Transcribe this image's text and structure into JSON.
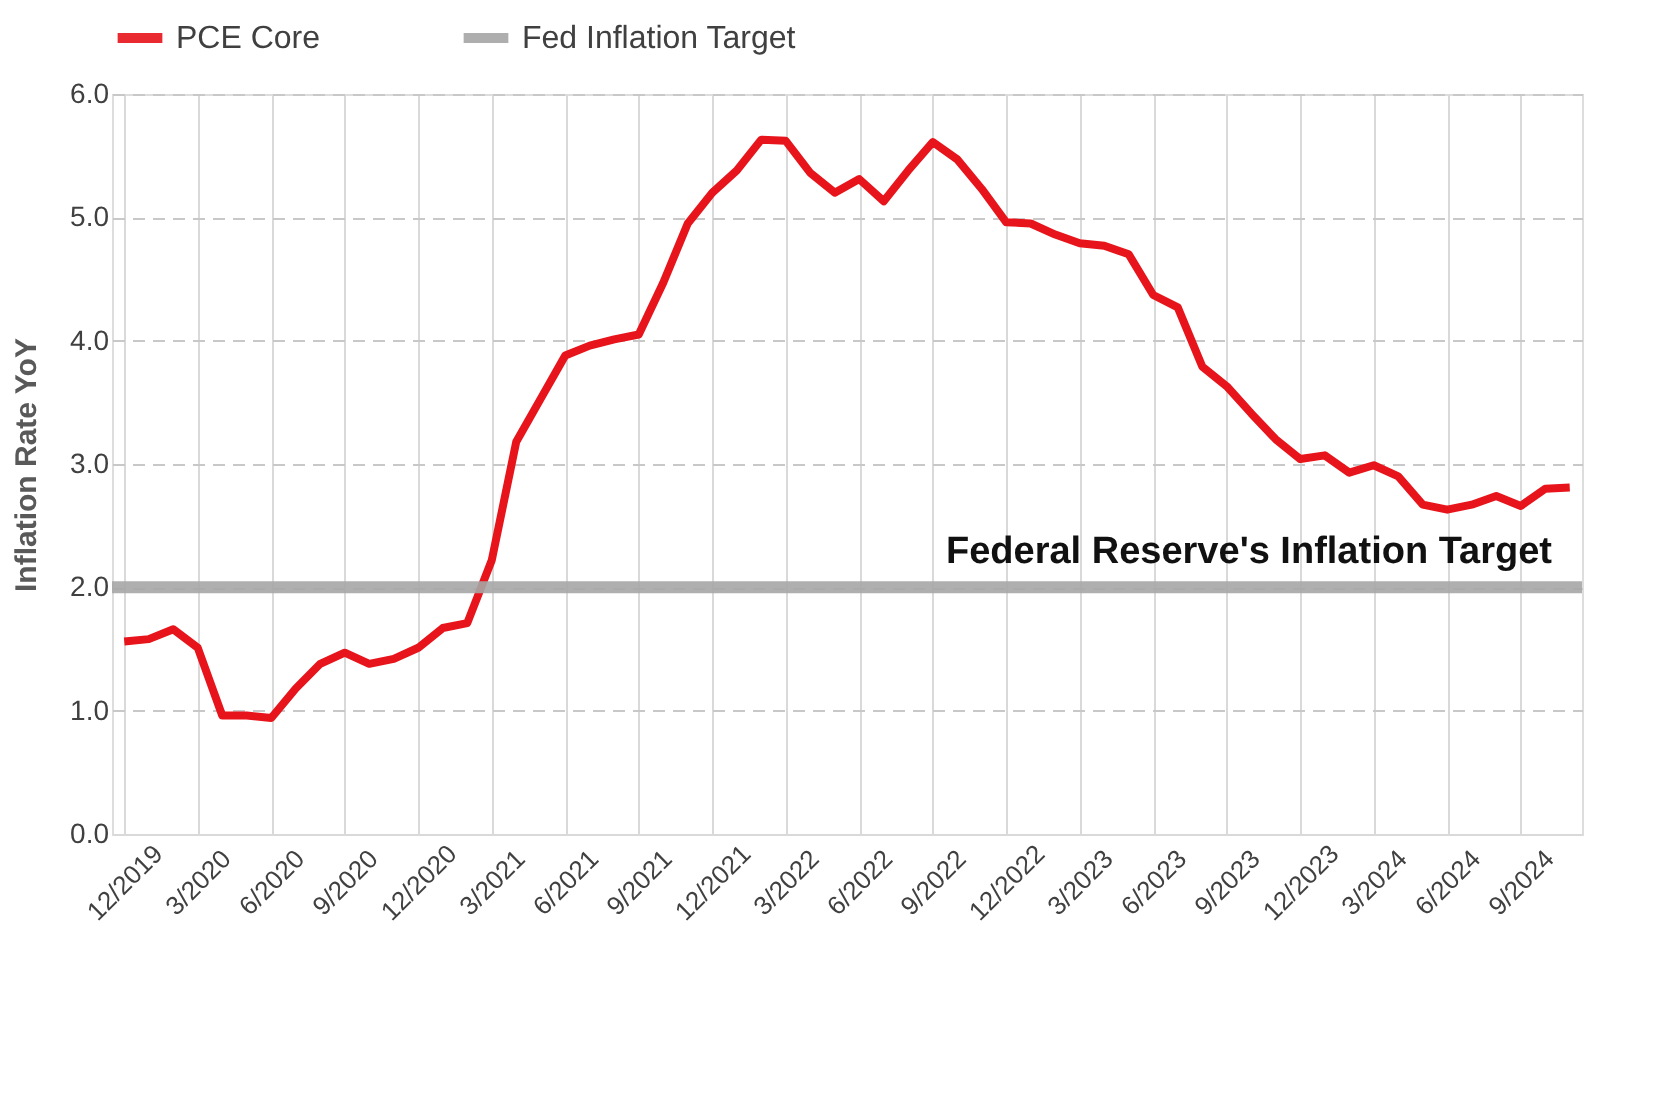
{
  "chart_data": {
    "type": "line",
    "categories": [
      "12/2019",
      null,
      null,
      "3/2020",
      null,
      null,
      "6/2020",
      null,
      null,
      "9/2020",
      null,
      null,
      "12/2020",
      null,
      null,
      "3/2021",
      null,
      null,
      "6/2021",
      null,
      null,
      "9/2021",
      null,
      null,
      "12/2021",
      null,
      null,
      "3/2022",
      null,
      null,
      "6/2022",
      null,
      null,
      "9/2022",
      null,
      null,
      "12/2022",
      null,
      null,
      "3/2023",
      null,
      null,
      "6/2023",
      null,
      null,
      "9/2023",
      null,
      null,
      "12/2023",
      null,
      null,
      "3/2024",
      null,
      null,
      "6/2024",
      null,
      null,
      "9/2024",
      null,
      null
    ],
    "series": [
      {
        "name": "PCE Core",
        "color": "#e8141b",
        "values": [
          1.56,
          1.58,
          1.66,
          1.51,
          0.96,
          0.96,
          0.94,
          1.18,
          1.38,
          1.47,
          1.38,
          1.42,
          1.51,
          1.67,
          1.71,
          2.22,
          3.18,
          3.53,
          3.88,
          3.96,
          4.01,
          4.05,
          4.47,
          4.95,
          5.2,
          5.38,
          5.63,
          5.62,
          5.36,
          5.2,
          5.31,
          5.13,
          5.38,
          5.61,
          5.47,
          5.23,
          4.96,
          4.95,
          4.86,
          4.79,
          4.77,
          4.7,
          4.37,
          4.27,
          3.79,
          3.63,
          3.41,
          3.2,
          3.04,
          3.07,
          2.93,
          2.99,
          2.9,
          2.67,
          2.63,
          2.67,
          2.74,
          2.66,
          2.8,
          2.81
        ]
      }
    ],
    "ylabel": "Inflation Rate YoY",
    "ylim": [
      0,
      6
    ],
    "yticks": [
      {
        "value": 0,
        "label": "0.0"
      },
      {
        "value": 1,
        "label": "1.0"
      },
      {
        "value": 2,
        "label": "2.0"
      },
      {
        "value": 3,
        "label": "3.0"
      },
      {
        "value": 4,
        "label": "4.0"
      },
      {
        "value": 5,
        "label": "5.0"
      },
      {
        "value": 6,
        "label": "6.0"
      }
    ],
    "ref_lines": [
      {
        "axis": "y",
        "value": 2.0,
        "label": "Fed Inflation Target",
        "color": "#a6a6a6"
      }
    ],
    "annotations": [
      {
        "text": "Federal Reserve's Inflation Target",
        "y": 2.0
      }
    ],
    "grid": true,
    "legend": "top",
    "marker": "none",
    "line_style": "solid"
  }
}
